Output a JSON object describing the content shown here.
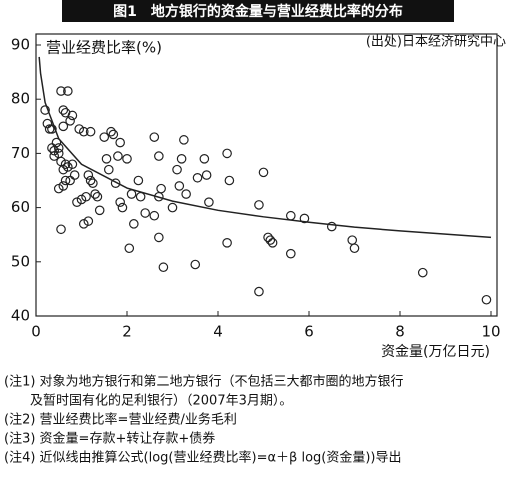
{
  "chart_data": {
    "type": "scatter",
    "title": "图1　地方银行的资金量与营业经费比率的分布",
    "source": "(出处)日本经济研究中心",
    "ylabel": "营业经费比率(%)",
    "xlabel": "资金量(万亿日元)",
    "xlim": [
      0,
      10
    ],
    "ylim": [
      40,
      90
    ],
    "xticks": [
      0,
      2,
      4,
      6,
      8,
      10
    ],
    "yticks": [
      40,
      50,
      60,
      70,
      80,
      90
    ],
    "color": "#222222",
    "points": {
      "x": [
        0.2,
        0.25,
        0.3,
        0.35,
        0.35,
        0.4,
        0.4,
        0.45,
        0.5,
        0.55,
        0.6,
        0.65,
        0.7,
        0.75,
        0.8,
        0.6,
        0.5,
        0.55,
        0.6,
        0.65,
        0.7,
        0.75,
        0.6,
        0.5,
        0.65,
        0.8,
        0.85,
        0.9,
        1.0,
        1.1,
        1.05,
        0.95,
        1.2,
        1.15,
        1.2,
        1.25,
        1.3,
        1.35,
        0.55,
        1.05,
        1.15,
        1.4,
        1.5,
        1.55,
        1.65,
        1.7,
        1.6,
        1.75,
        1.85,
        1.8,
        1.85,
        1.9,
        2.0,
        2.1,
        2.05,
        2.15,
        2.25,
        2.3,
        2.4,
        2.6,
        2.7,
        2.75,
        2.7,
        2.6,
        2.7,
        2.8,
        3.0,
        3.1,
        3.15,
        3.2,
        3.25,
        3.3,
        3.5,
        3.55,
        3.7,
        3.75,
        3.8,
        4.2,
        4.25,
        4.2,
        4.9,
        5.0,
        4.9,
        5.1,
        5.15,
        5.2,
        5.6,
        5.6,
        5.9,
        6.5,
        6.95,
        7.0,
        8.5,
        9.9
      ],
      "values": [
        78,
        75.5,
        74.5,
        74.5,
        71,
        70.5,
        69.5,
        72,
        71,
        81.5,
        78,
        77.5,
        81.5,
        76,
        77,
        75,
        70,
        68.5,
        67,
        68,
        67.5,
        65,
        64,
        63.5,
        65,
        68,
        66,
        61,
        61.5,
        62,
        74,
        74.5,
        74,
        66,
        65,
        64.5,
        62.5,
        62,
        56,
        57,
        57.5,
        59.5,
        73,
        69,
        74,
        73.5,
        67,
        64.5,
        72,
        69.5,
        61,
        60,
        69,
        62.5,
        52.5,
        57,
        65,
        62,
        59,
        73,
        69.5,
        63.5,
        62,
        58.5,
        54.5,
        49,
        60,
        67,
        64,
        69,
        72.5,
        62.5,
        49.5,
        65.5,
        69,
        66,
        61,
        70,
        65,
        53.5,
        60.5,
        66.5,
        44.5,
        54.5,
        54,
        53.5,
        58.5,
        51.5,
        58,
        56.5,
        54,
        52.5,
        48,
        43
      ]
    },
    "fit_line": {
      "x": [
        0.07,
        0.1,
        0.2,
        0.5,
        1,
        2,
        3,
        4,
        5,
        6,
        7,
        8,
        9,
        10
      ],
      "values": [
        87.8,
        84.8,
        79.4,
        72.7,
        68,
        63.6,
        61.2,
        59.5,
        58.3,
        57.3,
        56.4,
        55.7,
        55.1,
        54.5
      ]
    }
  },
  "notes": [
    "(注1) 对象为地方银行和第二地方银行（不包括三大都市圈的地方银行",
    "及暂时国有化的足利银行）（2007年3月期）。",
    "(注2) 营业经费比率=营业经费/业务毛利",
    "(注3) 资金量=存款+转让存款+债券",
    "(注4) 近似线由推算公式(log(营业经费比率)=α＋β log(资金量))导出"
  ]
}
